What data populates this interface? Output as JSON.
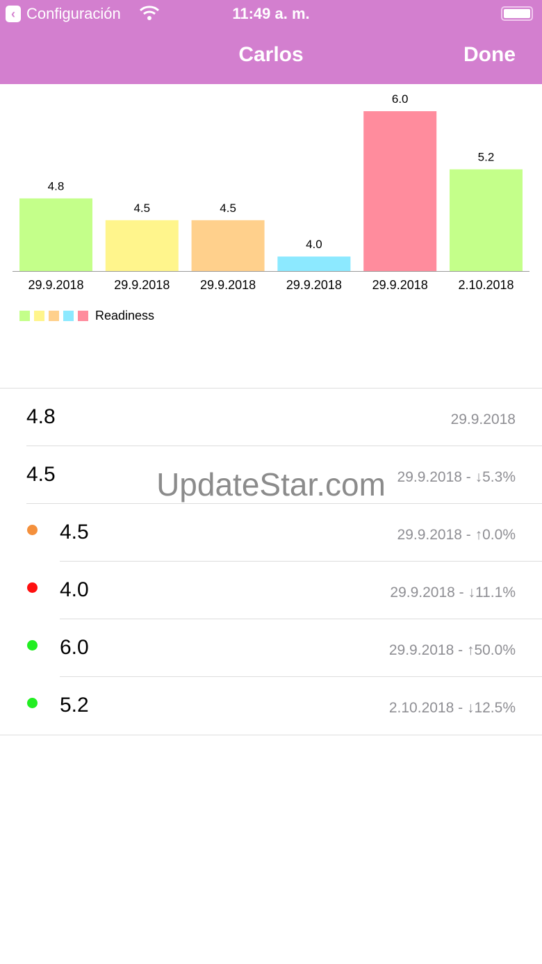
{
  "status_bar": {
    "back_app": "Configuración",
    "time": "11:49 a. m."
  },
  "nav": {
    "title": "Carlos",
    "done_label": "Done"
  },
  "chart_data": {
    "type": "bar",
    "categories": [
      "29.9.2018",
      "29.9.2018",
      "29.9.2018",
      "29.9.2018",
      "29.9.2018",
      "2.10.2018"
    ],
    "values": [
      4.8,
      4.5,
      4.5,
      4.0,
      6.0,
      5.2
    ],
    "value_labels": [
      "4.8",
      "4.5",
      "4.5",
      "4.0",
      "6.0",
      "5.2"
    ],
    "colors": [
      "#c4ff8a",
      "#fff58c",
      "#ffd08c",
      "#8ce9ff",
      "#ff8c9d",
      "#c4ff8a"
    ],
    "ylim": [
      3.8,
      6.0
    ],
    "grid": false,
    "legend": {
      "placement": "bottom-left",
      "label": "Readiness",
      "colors": [
        "#c4ff8a",
        "#fff58c",
        "#ffd08c",
        "#8ce9ff",
        "#ff8c9d"
      ]
    }
  },
  "list": [
    {
      "value": "4.8",
      "detail": "29.9.2018",
      "dot": null
    },
    {
      "value": "4.5",
      "detail": "29.9.2018 - ↓5.3%",
      "dot": null
    },
    {
      "value": "4.5",
      "detail": "29.9.2018 - ↑0.0%",
      "dot": "#f4903c"
    },
    {
      "value": "4.0",
      "detail": "29.9.2018 - ↓11.1%",
      "dot": "#ff1010"
    },
    {
      "value": "6.0",
      "detail": "29.9.2018 - ↑50.0%",
      "dot": "#22ee22"
    },
    {
      "value": "5.2",
      "detail": "2.10.2018 - ↓12.5%",
      "dot": "#22ee22"
    }
  ],
  "watermark": "UpdateStar.com"
}
